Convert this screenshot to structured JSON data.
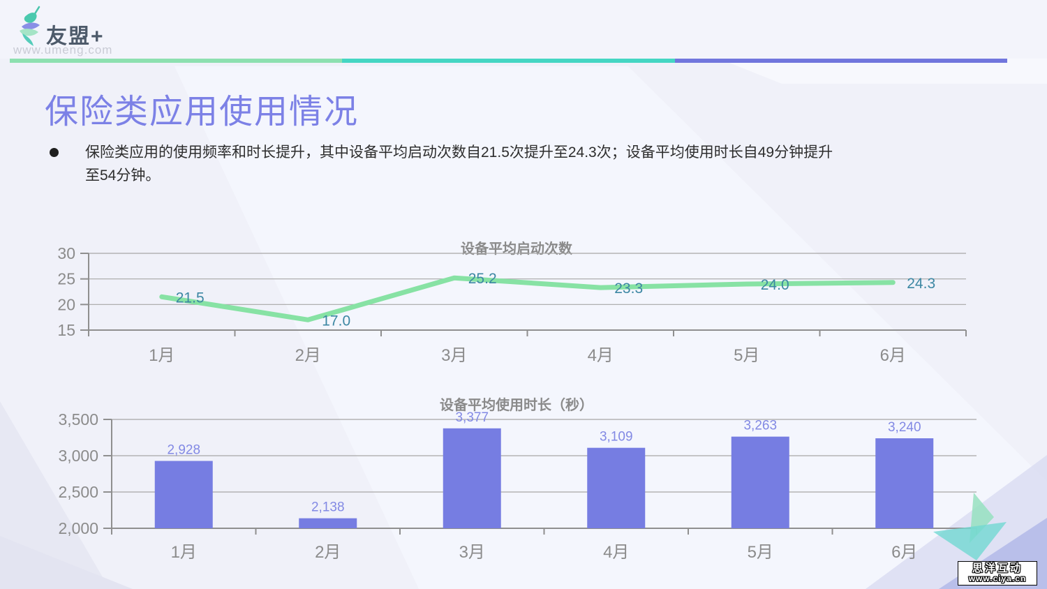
{
  "header": {
    "logo_text": "友盟+",
    "logo_url": "www.umeng.com"
  },
  "slide": {
    "title": "保险类应用使用情况",
    "bullet_line1": "保险类应用的使用频率和时长提升，其中设备平均启动次数自21.5次提升至24.3次；设备平均使用时长自49分钟提升",
    "bullet_line2": "至54分钟。"
  },
  "colors": {
    "title_purple": "#7c81e6",
    "divider_green": "#8de0b0",
    "divider_teal": "#45d6c3",
    "divider_purple": "#7176dd"
  },
  "watermark": {
    "line1": "思洋互动",
    "line2": "www.ciya.cn"
  },
  "chart_data": [
    {
      "type": "line",
      "title": "设备平均启动次数",
      "categories": [
        "1月",
        "2月",
        "3月",
        "4月",
        "5月",
        "6月"
      ],
      "values": [
        21.5,
        17.0,
        25.2,
        23.3,
        24.0,
        24.3
      ],
      "value_labels": [
        "21.5",
        "17.0",
        "25.2",
        "23.3",
        "24.0",
        "24.3"
      ],
      "xlabel": "",
      "ylabel": "",
      "ylim": [
        15,
        30
      ],
      "yticks": [
        15,
        20,
        25,
        30
      ],
      "ytick_labels": [
        "15",
        "20",
        "25",
        "30"
      ],
      "grid": true,
      "legend": "none",
      "line_color": "#87e2a4",
      "label_color": "#3c87a3",
      "grid_color": "#a6a6a6",
      "axis_color": "#8f8f8f",
      "tick_label_color": "#8b8b8b"
    },
    {
      "type": "bar",
      "title": "设备平均使用时长（秒）",
      "categories": [
        "1月",
        "2月",
        "3月",
        "4月",
        "5月",
        "6月"
      ],
      "values": [
        2928,
        2138,
        3377,
        3109,
        3263,
        3240
      ],
      "value_labels": [
        "2,928",
        "2,138",
        "3,377",
        "3,109",
        "3,263",
        "3,240"
      ],
      "xlabel": "",
      "ylabel": "",
      "ylim": [
        2000,
        3500
      ],
      "yticks": [
        2000,
        2500,
        3000,
        3500
      ],
      "ytick_labels": [
        "2,000",
        "2,500",
        "3,000",
        "3,500"
      ],
      "grid": true,
      "legend": "none",
      "bar_color": "#767de2",
      "label_color": "#8289e4",
      "grid_color": "#a6a6a6",
      "axis_color": "#8f8f8f",
      "tick_label_color": "#8b8b8b"
    }
  ]
}
